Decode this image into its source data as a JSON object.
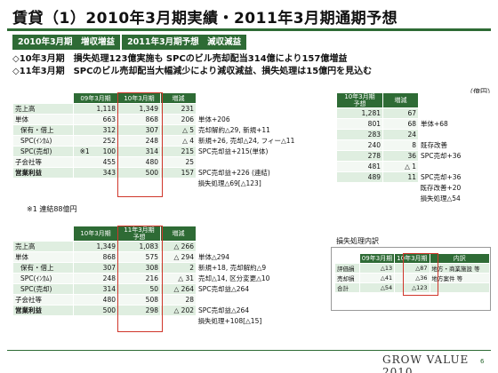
{
  "title": "賃貸（1）2010年3月期実績・2011年3月期通期予想",
  "headband": [
    "2010年3月期　増収増益",
    "2011年3月期予想　減収減益"
  ],
  "bullets": [
    "◇10年3月期　損失処理123億実施も SPCのビル売却配当314億により157億増益",
    "◇11年3月期　SPCのビル売却配当大幅減少により減収減益、損失処理は15億円を見込む"
  ],
  "unit": "（億円）",
  "table1": {
    "headers": [
      "",
      "09年3月期",
      "10年3月期",
      "増減"
    ],
    "rows": [
      {
        "label": "売上高",
        "a": "1,118",
        "b": "1,349",
        "d": "231",
        "note": ""
      },
      {
        "label": "単体",
        "a": "663",
        "b": "868",
        "d": "206",
        "note": "単体+206"
      },
      {
        "label": "保有・借上",
        "a": "312",
        "b": "307",
        "d": "△ 5",
        "note": "売却解約△29, 新規+11"
      },
      {
        "label": "SPC(ｲﾝｶﾑ)",
        "a": "252",
        "b": "248",
        "d": "△ 4",
        "note": "新規+26, 売却△24, フィー△11"
      },
      {
        "label": "SPC(売却)",
        "a": "※1　　100",
        "b": "314",
        "d": "215",
        "note": "SPC売却益+215(単体)"
      },
      {
        "label": "子会社等",
        "a": "455",
        "b": "480",
        "d": "25",
        "note": ""
      },
      {
        "label": "営業利益",
        "a": "343",
        "b": "500",
        "d": "157",
        "note": "SPC売却益+226 (連結)"
      }
    ],
    "extra_note": "損失処理△69[△123]",
    "footnote": "※1 連結88億円"
  },
  "table_right": {
    "headers": [
      "10年3月期\n予想",
      "増減"
    ],
    "rows": [
      {
        "a": "1,281",
        "d": "67",
        "note": ""
      },
      {
        "a": "801",
        "d": "68",
        "note": "単体+68"
      },
      {
        "a": "283",
        "d": "24",
        "note": ""
      },
      {
        "a": "240",
        "d": "8",
        "note": "既存改善"
      },
      {
        "a": "278",
        "d": "36",
        "note": "SPC売却+36"
      },
      {
        "a": "481",
        "d": "△ 1",
        "note": ""
      },
      {
        "a": "489",
        "d": "11",
        "note": "SPC売却+36"
      }
    ],
    "extra_notes": [
      "既存改善+20",
      "損失処理△54"
    ]
  },
  "table2": {
    "headers": [
      "",
      "10年3月期",
      "11年3月期\n予想",
      "増減"
    ],
    "rows": [
      {
        "label": "売上高",
        "a": "1,349",
        "b": "1,083",
        "d": "△ 266",
        "note": ""
      },
      {
        "label": "単体",
        "a": "868",
        "b": "575",
        "d": "△ 294",
        "note": "単体△294"
      },
      {
        "label": "保有・借上",
        "a": "307",
        "b": "308",
        "d": "2",
        "note": "新規+18, 売却解約△9"
      },
      {
        "label": "SPC(ｲﾝｶﾑ)",
        "a": "248",
        "b": "216",
        "d": "△ 31",
        "note": "売却△14, 区分変更△10"
      },
      {
        "label": "SPC(売却)",
        "a": "314",
        "b": "50",
        "d": "△ 264",
        "note": "SPC売却益△264"
      },
      {
        "label": "子会社等",
        "a": "480",
        "b": "508",
        "d": "28",
        "note": ""
      },
      {
        "label": "営業利益",
        "a": "500",
        "b": "298",
        "d": "△ 202",
        "note": "SPC売却益△264"
      }
    ],
    "extra_note": "損失処理+108[△15]"
  },
  "loss": {
    "label": "損失処理内訳",
    "headers": [
      "",
      "09年3月期",
      "10年3月期",
      "内訳"
    ],
    "rows": [
      {
        "label": "評価損",
        "a": "△13",
        "b": "△87",
        "note": "地方・商業施設 等"
      },
      {
        "label": "売却損",
        "a": "△41",
        "b": "△36",
        "note": "地方案件 等"
      },
      {
        "label": "合計",
        "a": "△54",
        "b": "△123",
        "note": ""
      }
    ]
  },
  "footer": {
    "logo": "GROW VALUE 2010",
    "page": "6"
  }
}
